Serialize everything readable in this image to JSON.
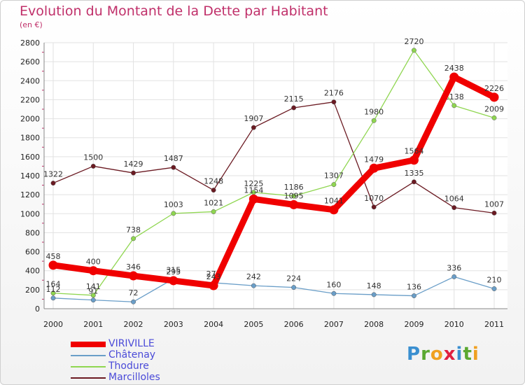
{
  "title": "Evolution du Montant de la Dette par Habitant",
  "subtitle": "(en €)",
  "logo": {
    "text": "Proxiti",
    "letter_colors": [
      "#3a8fd0",
      "#5aa830",
      "#f0a020",
      "#e02040",
      "#3a8fd0",
      "#5aa830",
      "#f0a020"
    ]
  },
  "chart_data": {
    "type": "line",
    "title": "Evolution du Montant de la Dette par Habitant",
    "subtitle": "(en €)",
    "categories": [
      "2000",
      "2001",
      "2002",
      "2003",
      "2004",
      "2005",
      "2006",
      "2007",
      "2008",
      "2009",
      "2010",
      "2011"
    ],
    "ylim": [
      0,
      2800
    ],
    "yticks": [
      0,
      200,
      400,
      600,
      800,
      1000,
      1200,
      1400,
      1600,
      1800,
      2000,
      2200,
      2400,
      2600,
      2800
    ],
    "grid": true,
    "legend_position": "bottom-left",
    "series": [
      {
        "name": "Marcilloles",
        "color": "#6b1a22",
        "values": [
          1322,
          1500,
          1429,
          1487,
          1248,
          1907,
          2115,
          2176,
          1070,
          1335,
          1064,
          1007
        ]
      },
      {
        "name": "Thodure",
        "color": "#8fd650",
        "values": [
          164,
          141,
          738,
          1003,
          1021,
          1225,
          1186,
          1307,
          1980,
          2720,
          2138,
          2009
        ]
      },
      {
        "name": "Châtenay",
        "color": "#6a9ec8",
        "values": [
          112,
          91,
          72,
          315,
          273,
          242,
          224,
          160,
          148,
          136,
          336,
          210
        ]
      },
      {
        "name": "VIRIVILLE",
        "color": "#f00000",
        "values": [
          458,
          400,
          346,
          295,
          243,
          1154,
          1095,
          1041,
          1479,
          1564,
          2438,
          2226
        ]
      }
    ]
  }
}
